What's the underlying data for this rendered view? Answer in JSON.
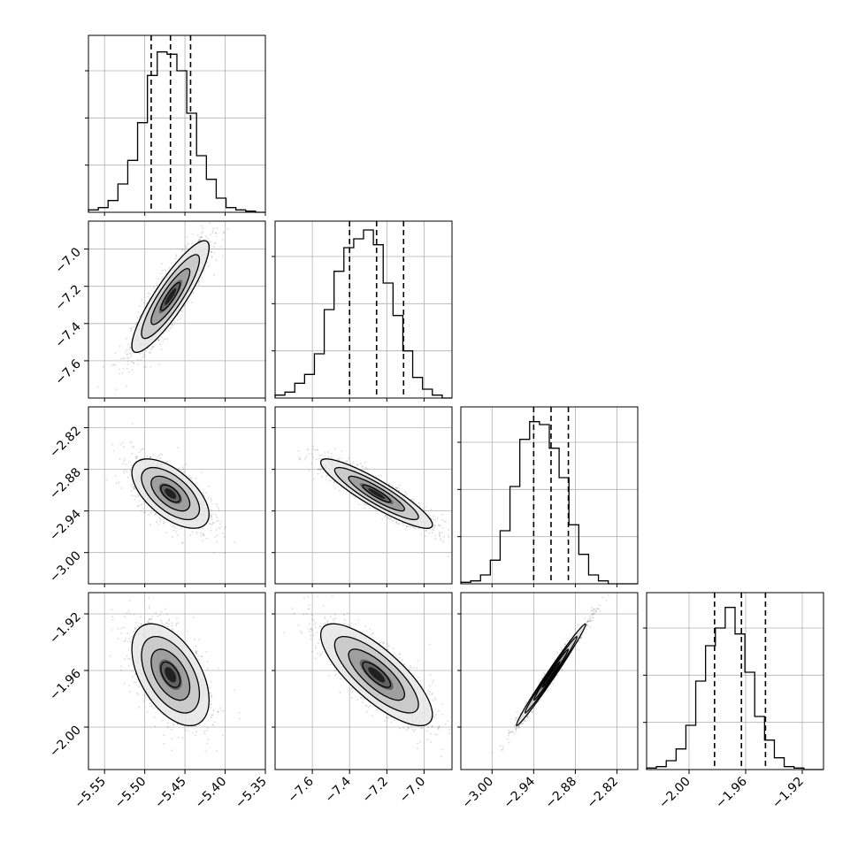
{
  "chart_data": {
    "type": "corner",
    "grid": true,
    "colors": {
      "line": "#000000",
      "grid": "#b0b0b0",
      "scatter": "#555555",
      "background": "#ffffff"
    },
    "params": [
      {
        "id": "p0",
        "range": [
          -5.57,
          -5.35
        ],
        "ticks": [
          -5.55,
          -5.5,
          -5.45,
          -5.4,
          -5.35
        ],
        "tick_labels": [
          "−5.55",
          "−5.50",
          "−5.45",
          "−5.40",
          "−5.35"
        ],
        "quantiles": [
          -5.492,
          -5.468,
          -5.443
        ],
        "hist_ymax": 0.075,
        "hist": [
          0.001,
          0.002,
          0.005,
          0.012,
          0.022,
          0.038,
          0.058,
          0.068,
          0.067,
          0.06,
          0.042,
          0.024,
          0.014,
          0.006,
          0.002,
          0.001,
          0.0005,
          0.0
        ]
      },
      {
        "id": "p1",
        "range": [
          -7.8,
          -6.85
        ],
        "ticks": [
          -7.6,
          -7.4,
          -7.2,
          -7.0
        ],
        "tick_labels": [
          "−7.6",
          "−7.4",
          "−7.2",
          "−7.0"
        ],
        "quantiles": [
          -7.4,
          -7.255,
          -7.11
        ],
        "hist_ymax": 0.06,
        "hist": [
          0.001,
          0.002,
          0.005,
          0.008,
          0.015,
          0.03,
          0.043,
          0.051,
          0.054,
          0.057,
          0.052,
          0.039,
          0.028,
          0.016,
          0.007,
          0.003,
          0.001,
          0.0
        ]
      },
      {
        "id": "p2",
        "range": [
          -3.045,
          -2.79
        ],
        "ticks": [
          -3.0,
          -2.94,
          -2.88,
          -2.82
        ],
        "tick_labels": [
          "−3.00",
          "−2.94",
          "−2.88",
          "−2.82"
        ],
        "quantiles": [
          -2.94,
          -2.915,
          -2.89
        ],
        "hist_ymax": 0.06,
        "hist": [
          0.0005,
          0.001,
          0.003,
          0.008,
          0.018,
          0.033,
          0.049,
          0.055,
          0.054,
          0.046,
          0.036,
          0.02,
          0.01,
          0.003,
          0.001,
          0.0,
          0.0,
          0.0
        ]
      },
      {
        "id": "p3",
        "range": [
          -2.03,
          -1.905
        ],
        "ticks": [
          -2.0,
          -1.96,
          -1.92
        ],
        "tick_labels": [
          "−2.00",
          "−1.96",
          "−1.92"
        ],
        "quantiles": [
          -1.982,
          -1.963,
          -1.946
        ],
        "hist_ymax": 0.06,
        "hist": [
          0.0005,
          0.001,
          0.003,
          0.007,
          0.015,
          0.03,
          0.042,
          0.048,
          0.055,
          0.046,
          0.033,
          0.018,
          0.01,
          0.004,
          0.001,
          0.0005,
          0.0,
          0.0
        ]
      }
    ],
    "pairs": [
      {
        "x": 0,
        "y": 1,
        "mean": [
          -5.468,
          -7.255
        ],
        "sd": [
          0.024,
          0.15
        ],
        "rho": 0.88
      },
      {
        "x": 0,
        "y": 2,
        "mean": [
          -5.468,
          -2.915
        ],
        "sd": [
          0.024,
          0.025
        ],
        "rho": -0.6
      },
      {
        "x": 1,
        "y": 2,
        "mean": [
          -7.255,
          -2.915
        ],
        "sd": [
          0.15,
          0.025
        ],
        "rho": -0.9
      },
      {
        "x": 0,
        "y": 3,
        "mean": [
          -5.468,
          -1.963
        ],
        "sd": [
          0.024,
          0.018
        ],
        "rho": -0.5
      },
      {
        "x": 1,
        "y": 3,
        "mean": [
          -7.255,
          -1.963
        ],
        "sd": [
          0.15,
          0.018
        ],
        "rho": -0.78
      },
      {
        "x": 2,
        "y": 3,
        "mean": [
          -2.915,
          -1.963
        ],
        "sd": [
          0.025,
          0.018
        ],
        "rho": 0.99
      }
    ]
  }
}
